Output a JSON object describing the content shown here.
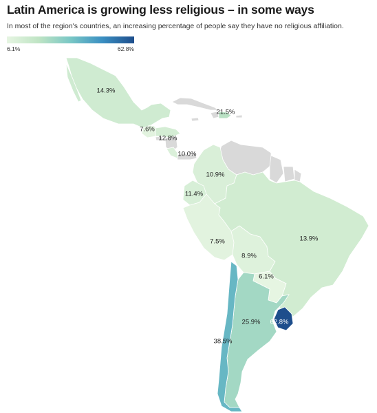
{
  "title": "Latin America is growing less religious – in some ways",
  "subtitle": "In most of the region's countries, an increasing percentage of people say they have no religious affiliation.",
  "legend": {
    "min_label": "6.1%",
    "max_label": "62.8%",
    "min_value": 6.1,
    "max_value": 62.8
  },
  "colors": {
    "no_data": "#d9d9d9",
    "scale": [
      "#e6f5e2",
      "#bfe4c4",
      "#79c7c5",
      "#3a8fc2",
      "#1e4e8c"
    ]
  },
  "countries": [
    {
      "key": "mexico",
      "value": 14.3,
      "label": "14.3%"
    },
    {
      "key": "guatemala",
      "value": 7.6,
      "label": "7.6%"
    },
    {
      "key": "honduras",
      "value": 12.8,
      "label": "12.8%"
    },
    {
      "key": "costa_rica",
      "value": 10.0,
      "label": "10.0%"
    },
    {
      "key": "dominican_republic",
      "value": 21.5,
      "label": "21.5%"
    },
    {
      "key": "colombia",
      "value": 10.9,
      "label": "10.9%"
    },
    {
      "key": "ecuador",
      "value": 11.4,
      "label": "11.4%"
    },
    {
      "key": "peru",
      "value": 7.5,
      "label": "7.5%"
    },
    {
      "key": "bolivia",
      "value": 8.9,
      "label": "8.9%"
    },
    {
      "key": "paraguay",
      "value": 6.1,
      "label": "6.1%"
    },
    {
      "key": "brazil",
      "value": 13.9,
      "label": "13.9%"
    },
    {
      "key": "argentina",
      "value": 25.9,
      "label": "25.9%"
    },
    {
      "key": "chile",
      "value": 38.5,
      "label": "38.5%"
    },
    {
      "key": "uruguay",
      "value": 62.8,
      "label": "62.8%"
    }
  ]
}
